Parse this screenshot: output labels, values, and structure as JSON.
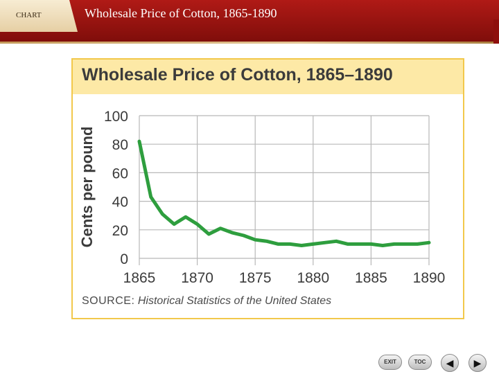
{
  "header": {
    "tab_label": "CHART",
    "title": "Wholesale Price of Cotton, 1865-1890"
  },
  "colors": {
    "header_red": "#9b1512",
    "panel_border": "#f2c84b",
    "title_band": "#fde9a6",
    "line_green": "#2e9e3e"
  },
  "chart_data": {
    "type": "line",
    "title": "Wholesale Price of Cotton, 1865–1890",
    "xlabel": "",
    "ylabel": "Cents per pound",
    "xlim": [
      1865,
      1890
    ],
    "ylim": [
      0,
      100
    ],
    "x_ticks": [
      "1865",
      "1870",
      "1875",
      "1880",
      "1885",
      "1890"
    ],
    "y_ticks": [
      "0",
      "20",
      "40",
      "60",
      "80",
      "100"
    ],
    "grid": true,
    "series": [
      {
        "x": [
          1865,
          1866,
          1867,
          1868,
          1869,
          1870,
          1871,
          1872,
          1873,
          1874,
          1875,
          1876,
          1877,
          1878,
          1879,
          1880,
          1881,
          1882,
          1883,
          1884,
          1885,
          1886,
          1887,
          1888,
          1889,
          1890
        ],
        "values": [
          82,
          43,
          31,
          24,
          29,
          24,
          17,
          21,
          18,
          16,
          13,
          12,
          10,
          10,
          9,
          10,
          11,
          12,
          10,
          10,
          10,
          9,
          10,
          10,
          10,
          11
        ]
      }
    ],
    "source_label": "SOURCE:",
    "source_text": "Historical Statistics of the United States"
  },
  "nav": {
    "exit_label": "EXIT",
    "toc_label": "TOC",
    "prev_glyph": "◀",
    "next_glyph": "▶"
  }
}
